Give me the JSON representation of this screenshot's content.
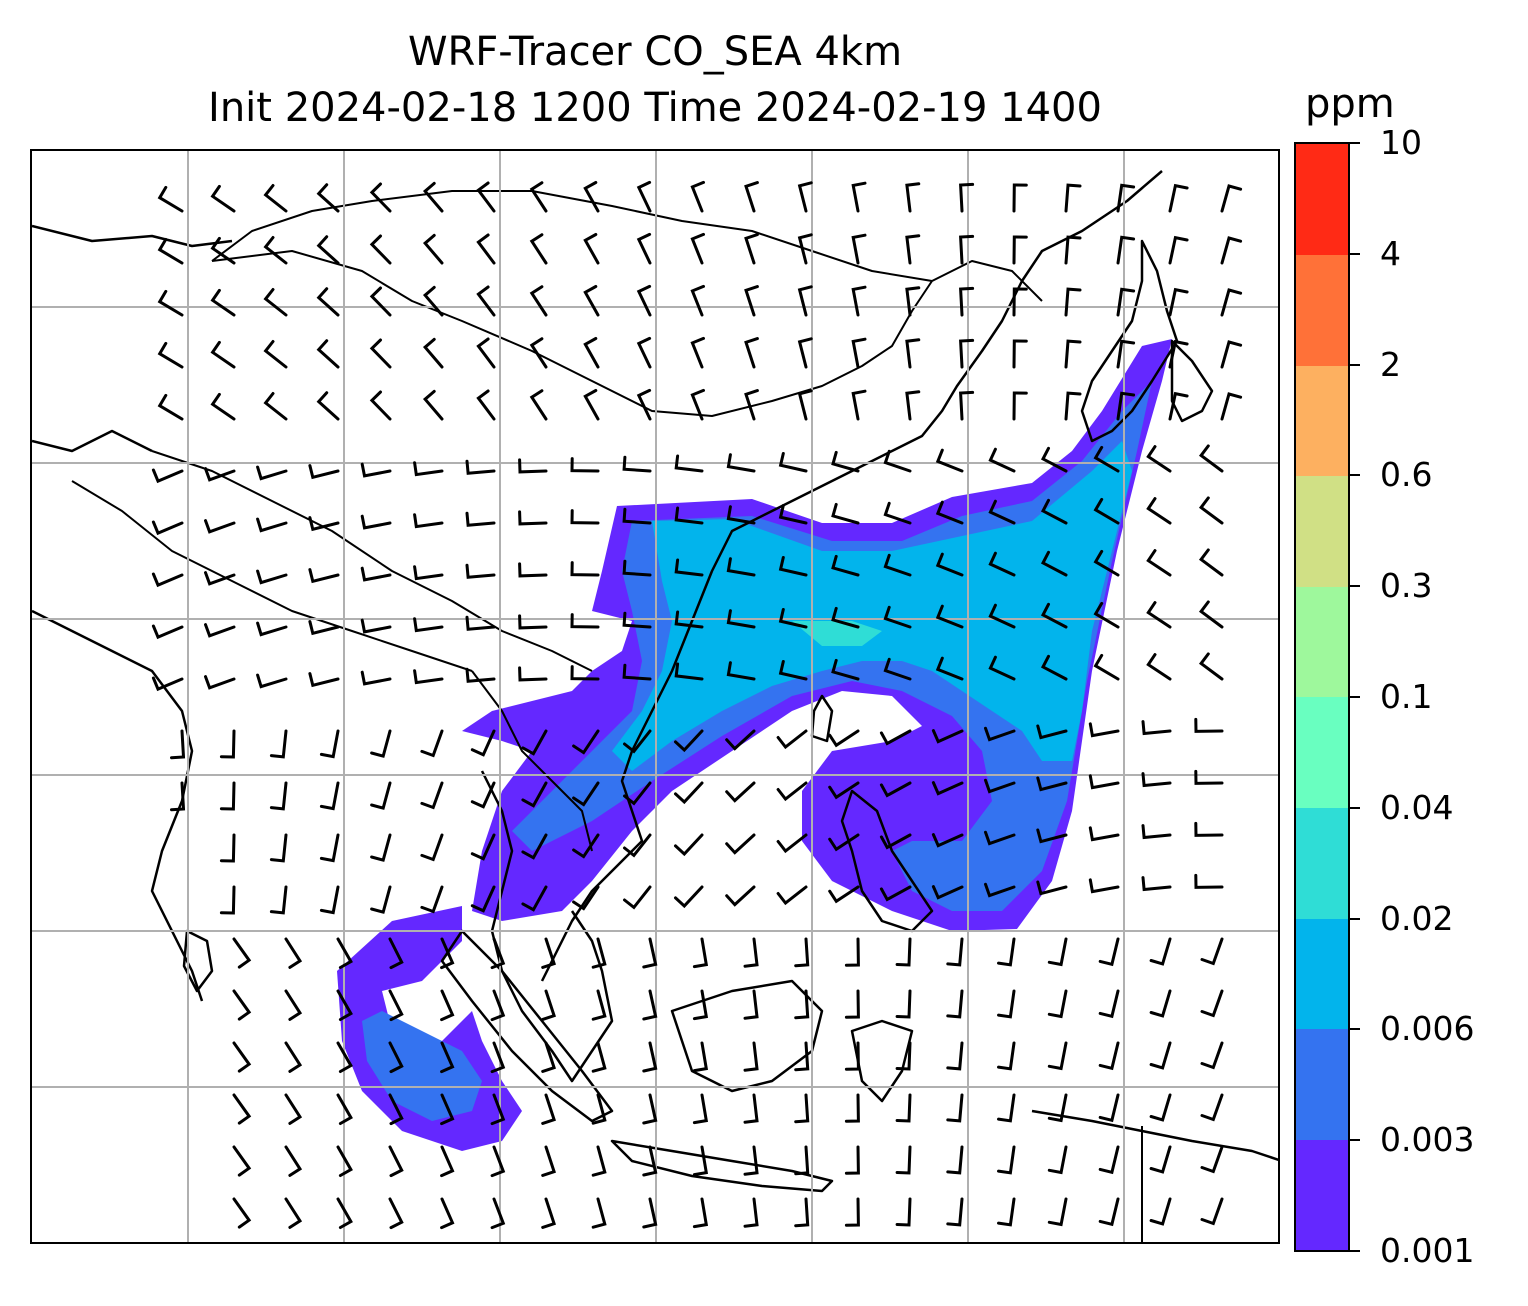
{
  "title": {
    "line1": "WRF-Tracer CO_SEA 4km",
    "line2": "Init 2024-02-18 1200 Time 2024-02-19 1400"
  },
  "colorbar": {
    "unit": "ppm",
    "levels": [
      "0.001",
      "0.003",
      "0.006",
      "0.02",
      "0.04",
      "0.1",
      "0.3",
      "0.6",
      "2",
      "4",
      "10"
    ],
    "colors": [
      "#6428ff",
      "#3473f0",
      "#02b4ec",
      "#2fddd6",
      "#69ffc0",
      "#9ef89c",
      "#d0e085",
      "#fdb060",
      "#ff7138",
      "#ff2a15"
    ]
  },
  "map": {
    "gridlines": true,
    "gridline_color": "#b0b0b0",
    "layers": [
      "coastlines",
      "country-borders",
      "co-tracer-concentration",
      "wind-barbs"
    ]
  }
}
